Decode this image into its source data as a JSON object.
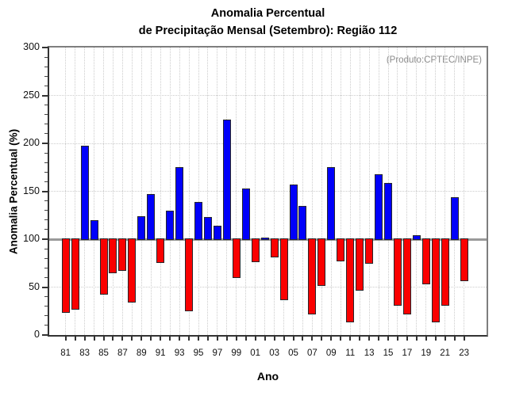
{
  "figure": {
    "title_line1": "Anomalia Percentual",
    "title_line2": "de Precipitação Mensal (Setembro): Região 112",
    "annotation": "(Produto:CPTEC/INPE)"
  },
  "chart_data": {
    "type": "bar",
    "title": "Anomalia Percentual de Precipitação Mensal (Setembro): Região 112",
    "xlabel": "Ano",
    "ylabel": "Anomalia Percentual (%)",
    "ylim": [
      0,
      300
    ],
    "y_tick_step": 50,
    "y_minor_tick_step": 10,
    "baseline": 100,
    "grid": true,
    "x_label_every": 2,
    "legend": "none",
    "categories": [
      "81",
      "82",
      "83",
      "84",
      "85",
      "86",
      "87",
      "88",
      "89",
      "90",
      "91",
      "92",
      "93",
      "94",
      "95",
      "96",
      "97",
      "98",
      "99",
      "00",
      "01",
      "02",
      "03",
      "04",
      "05",
      "06",
      "07",
      "08",
      "09",
      "10",
      "11",
      "12",
      "13",
      "14",
      "15",
      "16",
      "17",
      "18",
      "19",
      "20",
      "21",
      "22",
      "23"
    ],
    "values": [
      24,
      27,
      197,
      119,
      43,
      65,
      68,
      35,
      123,
      146,
      76,
      129,
      174,
      26,
      138,
      122,
      113,
      224,
      60,
      152,
      77,
      101,
      82,
      37,
      156,
      134,
      22,
      52,
      174,
      78,
      14,
      47,
      75,
      167,
      158,
      31,
      22,
      103,
      54,
      14,
      31,
      143,
      57
    ],
    "colors": {
      "above_baseline": "#0000fa",
      "below_baseline": "#fa0000",
      "bar_outline": "#26262b",
      "baseline_line": "#9a9a9a",
      "grid": "#cccccc",
      "frame_top_right": "#7e7e7e",
      "axis": "#333333",
      "annotation_text": "#8c8c8c"
    }
  }
}
